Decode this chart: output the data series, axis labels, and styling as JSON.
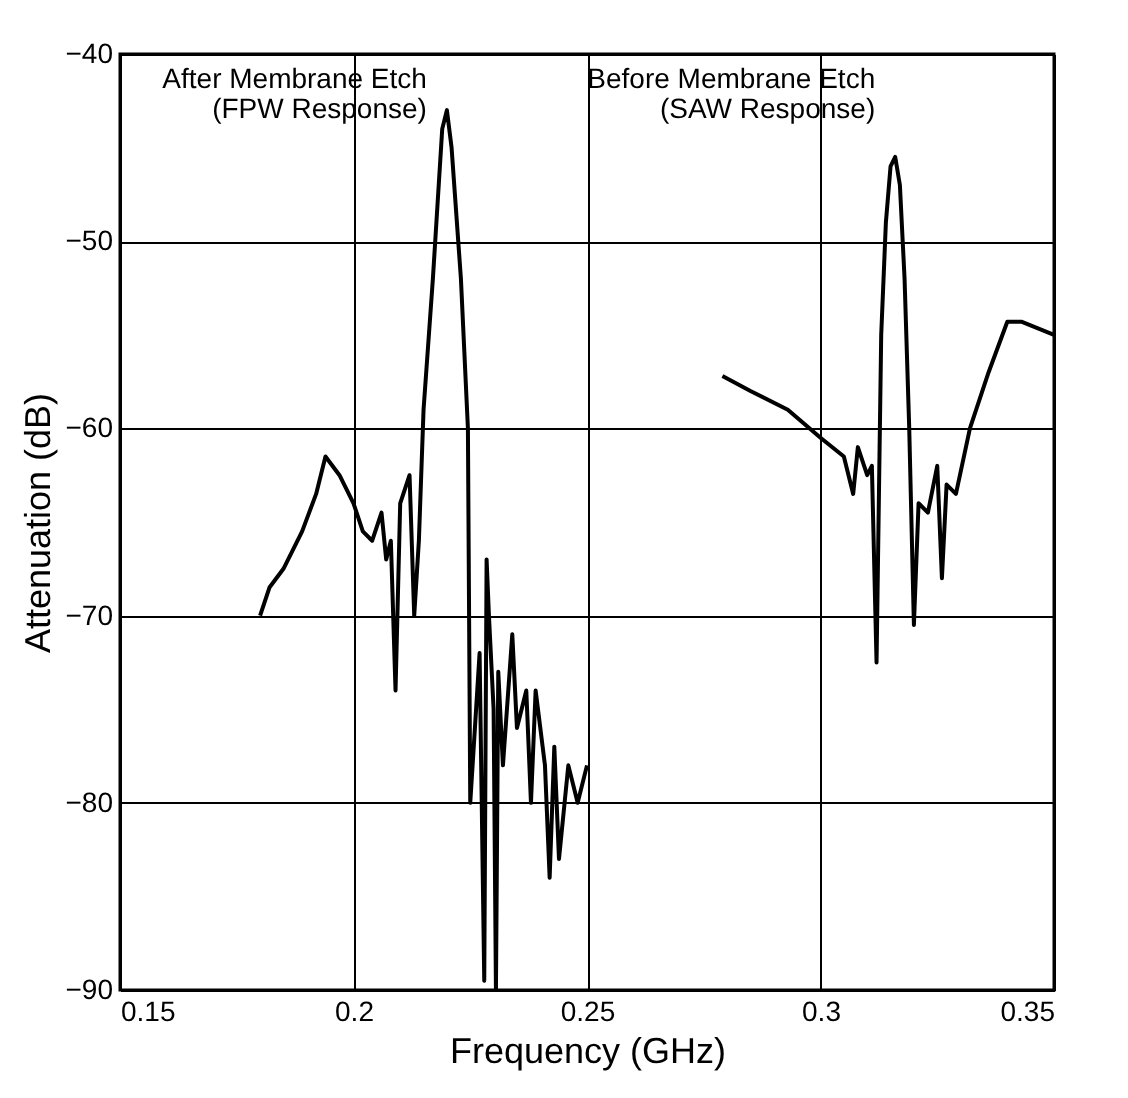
{
  "chart_data": {
    "type": "line",
    "xlabel": "Frequency (GHz)",
    "ylabel": "Attenuation (dB)",
    "xlim": [
      0.15,
      0.35
    ],
    "xticks": [
      0.15,
      0.2,
      0.25,
      0.3,
      0.35
    ],
    "ylim": [
      -90,
      -40
    ],
    "yticks": [
      -90,
      -80,
      -70,
      -60,
      -50,
      -40
    ],
    "grid": true,
    "legend": false,
    "line_style": "solid",
    "series": [
      {
        "name": "After Membrane Etch\n(FPW Response)",
        "color": "#000000",
        "x": [
          0.18,
          0.182,
          0.185,
          0.189,
          0.192,
          0.194,
          0.197,
          0.2,
          0.202,
          0.204,
          0.206,
          0.207,
          0.208,
          0.209,
          0.21,
          0.212,
          0.213,
          0.214,
          0.215,
          0.217,
          0.219,
          0.22,
          0.221,
          0.223,
          0.2245,
          0.225,
          0.226,
          0.227,
          0.228,
          0.2285,
          0.229,
          0.23,
          0.2305,
          0.231,
          0.232,
          0.234,
          0.235,
          0.237,
          0.238,
          0.239,
          0.241,
          0.242,
          0.243,
          0.244,
          0.246,
          0.248,
          0.25
        ],
        "values": [
          -70,
          -68.5,
          -67.5,
          -65.5,
          -63.5,
          -61.5,
          -62.5,
          -64,
          -65.5,
          -66,
          -64.5,
          -67,
          -66,
          -74,
          -64,
          -62.5,
          -70,
          -66,
          -59,
          -52,
          -44,
          -43,
          -45,
          -52,
          -60,
          -80,
          -76,
          -72,
          -89.5,
          -67,
          -70,
          -75,
          -90,
          -73,
          -78,
          -71,
          -76,
          -74,
          -80,
          -74,
          -78,
          -84,
          -77,
          -83,
          -78,
          -80,
          -78
        ]
      },
      {
        "name": "Before Membrane Etch\n(SAW Response)",
        "color": "#000000",
        "x": [
          0.279,
          0.285,
          0.293,
          0.3,
          0.305,
          0.307,
          0.308,
          0.31,
          0.311,
          0.312,
          0.313,
          0.314,
          0.315,
          0.316,
          0.317,
          0.318,
          0.319,
          0.32,
          0.321,
          0.323,
          0.325,
          0.326,
          0.327,
          0.329,
          0.332,
          0.336,
          0.34,
          0.343,
          0.35
        ],
        "values": [
          -57.2,
          -58,
          -59,
          -60.5,
          -61.5,
          -63.5,
          -61,
          -62.5,
          -62,
          -72.5,
          -55,
          -49,
          -46,
          -45.5,
          -47,
          -52,
          -60,
          -70.5,
          -64,
          -64.5,
          -62,
          -68,
          -63,
          -63.5,
          -60,
          -57,
          -54.3,
          -54.3,
          -55
        ]
      }
    ]
  }
}
